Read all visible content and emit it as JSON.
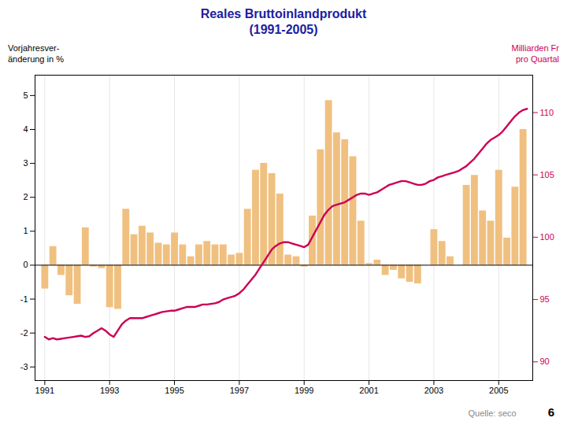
{
  "chart_data": {
    "type": "bar",
    "title": "Reales Bruttoinlandprodukt",
    "subtitle": "(1991-2005)",
    "ylabel": "Vorjahresver-\nänderung in %",
    "y2label": "Milliarden Fr\npro Quartal",
    "annotations": [
      "Quelle: seco",
      "6"
    ],
    "xlim": [
      1990.7,
      2006.05
    ],
    "xticks": [
      1991,
      1993,
      1995,
      1997,
      1999,
      2001,
      2003,
      2005
    ],
    "ylim": [
      -3.4,
      5.6
    ],
    "yticks": [
      -3,
      -2,
      -1,
      0,
      1,
      2,
      3,
      4,
      5
    ],
    "y2lim": [
      88.5,
      113.0
    ],
    "y2ticks": [
      90,
      95,
      100,
      105,
      110
    ],
    "grid": "x",
    "series": [
      {
        "type": "bar",
        "color": "#f0c080",
        "x": [
          1991.0,
          1991.25,
          1991.5,
          1991.75,
          1992.0,
          1992.25,
          1992.5,
          1992.75,
          1993.0,
          1993.25,
          1993.5,
          1993.75,
          1994.0,
          1994.25,
          1994.5,
          1994.75,
          1995.0,
          1995.25,
          1995.5,
          1995.75,
          1996.0,
          1996.25,
          1996.5,
          1996.75,
          1997.0,
          1997.25,
          1997.5,
          1997.75,
          1998.0,
          1998.25,
          1998.5,
          1998.75,
          1999.0,
          1999.25,
          1999.5,
          1999.75,
          2000.0,
          2000.25,
          2000.5,
          2000.75,
          2001.0,
          2001.25,
          2001.5,
          2001.75,
          2002.0,
          2002.25,
          2002.5,
          2002.75,
          2003.0,
          2003.25,
          2003.5,
          2003.75,
          2004.0,
          2004.25,
          2004.5,
          2004.75,
          2005.0,
          2005.25,
          2005.5,
          2005.75
        ],
        "values": [
          -0.7,
          0.55,
          -0.3,
          -0.9,
          -1.15,
          1.1,
          -0.05,
          -0.1,
          -1.25,
          -1.3,
          1.65,
          0.9,
          1.15,
          0.95,
          0.65,
          0.6,
          0.95,
          0.6,
          0.25,
          0.6,
          0.7,
          0.6,
          0.6,
          0.3,
          0.35,
          1.65,
          2.8,
          3.0,
          2.7,
          2.1,
          0.3,
          0.25,
          -0.05,
          1.45,
          3.4,
          4.85,
          3.9,
          3.7,
          3.2,
          1.3,
          0.05,
          0.15,
          -0.3,
          -0.15,
          -0.4,
          -0.5,
          -0.55,
          0.0,
          1.05,
          0.7,
          0.25,
          0.0,
          2.35,
          2.65,
          1.6,
          1.3,
          2.8,
          0.8,
          2.3,
          4.0
        ]
      },
      {
        "type": "line",
        "axis": "y2",
        "color": "#cc0055",
        "x": [
          1991.0,
          1991.125,
          1991.25,
          1991.375,
          1991.5,
          1991.625,
          1991.75,
          1991.875,
          1992.0,
          1992.125,
          1992.25,
          1992.375,
          1992.5,
          1992.625,
          1992.75,
          1992.875,
          1993.0,
          1993.125,
          1993.25,
          1993.375,
          1993.5,
          1993.625,
          1993.75,
          1993.875,
          1994.0,
          1994.125,
          1994.25,
          1994.375,
          1994.5,
          1994.625,
          1994.75,
          1994.875,
          1995.0,
          1995.125,
          1995.25,
          1995.375,
          1995.5,
          1995.625,
          1995.75,
          1995.875,
          1996.0,
          1996.125,
          1996.25,
          1996.375,
          1996.5,
          1996.625,
          1996.75,
          1996.875,
          1997.0,
          1997.125,
          1997.25,
          1997.375,
          1997.5,
          1997.625,
          1997.75,
          1997.875,
          1998.0,
          1998.125,
          1998.25,
          1998.375,
          1998.5,
          1998.625,
          1998.75,
          1998.875,
          1999.0,
          1999.125,
          1999.25,
          1999.375,
          1999.5,
          1999.625,
          1999.75,
          1999.875,
          2000.0,
          2000.125,
          2000.25,
          2000.375,
          2000.5,
          2000.625,
          2000.75,
          2000.875,
          2001.0,
          2001.125,
          2001.25,
          2001.375,
          2001.5,
          2001.625,
          2001.75,
          2001.875,
          2002.0,
          2002.125,
          2002.25,
          2002.375,
          2002.5,
          2002.625,
          2002.75,
          2002.875,
          2003.0,
          2003.125,
          2003.25,
          2003.375,
          2003.5,
          2003.625,
          2003.75,
          2003.875,
          2004.0,
          2004.125,
          2004.25,
          2004.375,
          2004.5,
          2004.625,
          2004.75,
          2004.875,
          2005.0,
          2005.125,
          2005.25,
          2005.375,
          2005.5,
          2005.625,
          2005.75,
          2005.875
        ],
        "values": [
          92.0,
          91.8,
          91.9,
          91.8,
          91.85,
          91.9,
          91.95,
          92.0,
          92.05,
          92.1,
          92.0,
          92.05,
          92.3,
          92.5,
          92.7,
          92.5,
          92.2,
          92.0,
          92.5,
          93.0,
          93.3,
          93.5,
          93.5,
          93.5,
          93.5,
          93.6,
          93.7,
          93.8,
          93.9,
          94.0,
          94.05,
          94.1,
          94.1,
          94.2,
          94.3,
          94.4,
          94.4,
          94.4,
          94.5,
          94.6,
          94.6,
          94.65,
          94.7,
          94.8,
          95.0,
          95.1,
          95.2,
          95.3,
          95.5,
          95.8,
          96.2,
          96.6,
          97.0,
          97.5,
          98.0,
          98.5,
          99.0,
          99.3,
          99.5,
          99.6,
          99.6,
          99.5,
          99.4,
          99.3,
          99.2,
          99.4,
          100.0,
          100.6,
          101.2,
          101.8,
          102.2,
          102.5,
          102.6,
          102.7,
          102.8,
          103.0,
          103.2,
          103.4,
          103.5,
          103.5,
          103.4,
          103.5,
          103.6,
          103.8,
          104.0,
          104.2,
          104.3,
          104.4,
          104.5,
          104.5,
          104.4,
          104.3,
          104.2,
          104.2,
          104.3,
          104.5,
          104.6,
          104.8,
          104.9,
          105.0,
          105.1,
          105.2,
          105.3,
          105.5,
          105.7,
          106.0,
          106.3,
          106.7,
          107.1,
          107.5,
          107.8,
          108.0,
          108.2,
          108.5,
          108.9,
          109.3,
          109.7,
          110.0,
          110.2,
          110.3
        ]
      }
    ]
  }
}
